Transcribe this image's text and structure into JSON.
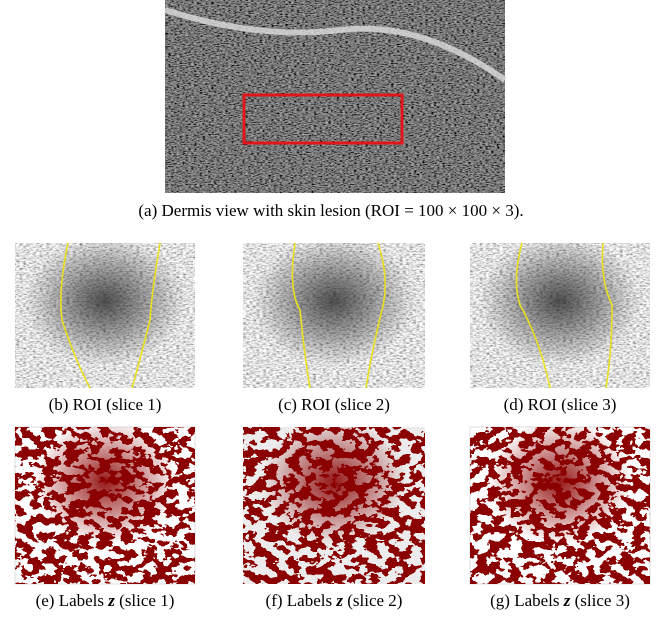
{
  "figure": {
    "main": {
      "caption": "(a) Dermis view with skin lesion (ROI = 100 × 100 × 3)."
    },
    "roi": [
      {
        "caption": "(b) ROI (slice 1)"
      },
      {
        "caption": "(c) ROI (slice 2)"
      },
      {
        "caption": "(d) ROI (slice 3)"
      }
    ],
    "labels": [
      {
        "label": "(e) Labels",
        "variable": "z",
        "slice": "(slice 1)"
      },
      {
        "label": "(f) Labels",
        "variable": "z",
        "slice": "(slice 2)"
      },
      {
        "label": "(g) Labels",
        "variable": "z",
        "slice": "(slice 3)"
      }
    ]
  }
}
